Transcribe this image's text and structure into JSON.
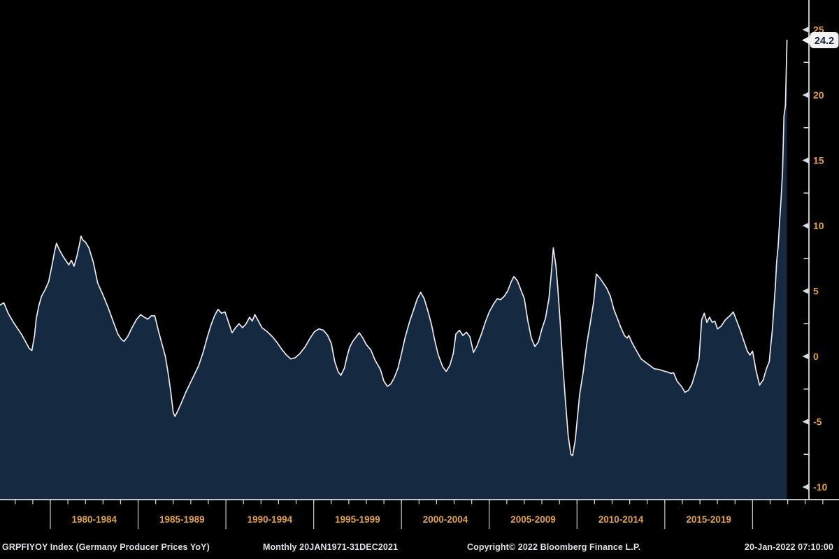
{
  "chart_data": {
    "type": "area",
    "title": "Germany Producer Prices YoY",
    "xlabel": "",
    "ylabel": "",
    "grid": false,
    "legend_position": "none",
    "y_axis": {
      "labeled_ticks": [
        25,
        20,
        15,
        10,
        5,
        0,
        -5,
        -10
      ],
      "minor_ticks": [
        22.5,
        17.5,
        12.5,
        7.5,
        2.5,
        -2.5,
        -7.5
      ],
      "range": [
        -10.6,
        25.6
      ],
      "side": "right"
    },
    "x_axis": {
      "bucket_labels": [
        {
          "label": "1980-1984",
          "start_year": 1980
        },
        {
          "label": "1985-1989",
          "start_year": 1985
        },
        {
          "label": "1990-1994",
          "start_year": 1990
        },
        {
          "label": "1995-1999",
          "start_year": 1995
        },
        {
          "label": "2000-2004",
          "start_year": 2000
        },
        {
          "label": "2005-2009",
          "start_year": 2005
        },
        {
          "label": "2010-2014",
          "start_year": 2010
        },
        {
          "label": "2015-2019",
          "start_year": 2015
        }
      ],
      "separator_years": [
        1980,
        1985,
        1990,
        1995,
        2000,
        2005,
        2010,
        2015,
        2020
      ],
      "year_tick_start": 1978,
      "year_tick_end": 2024,
      "visible_range": [
        1977.1,
        2022.0
      ]
    },
    "last_value": 24.2,
    "last_value_label": "24.2",
    "series": [
      {
        "name": "GRPFIYOY Index",
        "points": [
          [
            1977.1,
            3.9
          ],
          [
            1977.35,
            4.1
          ],
          [
            1977.6,
            3.3
          ],
          [
            1977.9,
            2.6
          ],
          [
            1978.1,
            2.2
          ],
          [
            1978.35,
            1.7
          ],
          [
            1978.6,
            1.1
          ],
          [
            1978.8,
            0.6
          ],
          [
            1978.95,
            0.45
          ],
          [
            1979.1,
            1.6
          ],
          [
            1979.2,
            2.9
          ],
          [
            1979.35,
            3.9
          ],
          [
            1979.5,
            4.6
          ],
          [
            1979.7,
            5.1
          ],
          [
            1979.9,
            5.7
          ],
          [
            1980.1,
            7.0
          ],
          [
            1980.25,
            8.1
          ],
          [
            1980.35,
            8.65
          ],
          [
            1980.5,
            8.2
          ],
          [
            1980.7,
            7.7
          ],
          [
            1980.9,
            7.3
          ],
          [
            1981.05,
            7.0
          ],
          [
            1981.2,
            7.35
          ],
          [
            1981.35,
            6.9
          ],
          [
            1981.5,
            7.6
          ],
          [
            1981.65,
            8.5
          ],
          [
            1981.75,
            9.2
          ],
          [
            1981.85,
            8.9
          ],
          [
            1982.0,
            8.75
          ],
          [
            1982.2,
            8.3
          ],
          [
            1982.45,
            7.2
          ],
          [
            1982.7,
            5.6
          ],
          [
            1983.0,
            4.7
          ],
          [
            1983.3,
            3.7
          ],
          [
            1983.6,
            2.6
          ],
          [
            1983.85,
            1.7
          ],
          [
            1984.05,
            1.3
          ],
          [
            1984.2,
            1.15
          ],
          [
            1984.4,
            1.5
          ],
          [
            1984.65,
            2.2
          ],
          [
            1984.9,
            2.8
          ],
          [
            1985.15,
            3.2
          ],
          [
            1985.35,
            3.0
          ],
          [
            1985.55,
            2.85
          ],
          [
            1985.75,
            3.1
          ],
          [
            1985.95,
            3.1
          ],
          [
            1986.15,
            2.0
          ],
          [
            1986.35,
            1.0
          ],
          [
            1986.55,
            0.0
          ],
          [
            1986.7,
            -1.2
          ],
          [
            1986.85,
            -2.6
          ],
          [
            1987.0,
            -4.3
          ],
          [
            1987.1,
            -4.6
          ],
          [
            1987.25,
            -4.2
          ],
          [
            1987.45,
            -3.6
          ],
          [
            1987.7,
            -2.8
          ],
          [
            1987.95,
            -2.1
          ],
          [
            1988.2,
            -1.4
          ],
          [
            1988.45,
            -0.7
          ],
          [
            1988.7,
            0.3
          ],
          [
            1988.95,
            1.5
          ],
          [
            1989.15,
            2.4
          ],
          [
            1989.35,
            3.1
          ],
          [
            1989.55,
            3.6
          ],
          [
            1989.75,
            3.3
          ],
          [
            1989.95,
            3.4
          ],
          [
            1990.15,
            2.6
          ],
          [
            1990.35,
            1.8
          ],
          [
            1990.55,
            2.2
          ],
          [
            1990.75,
            2.5
          ],
          [
            1990.95,
            2.2
          ],
          [
            1991.15,
            2.5
          ],
          [
            1991.35,
            3.0
          ],
          [
            1991.5,
            2.7
          ],
          [
            1991.65,
            3.2
          ],
          [
            1991.85,
            2.7
          ],
          [
            1992.05,
            2.2
          ],
          [
            1992.35,
            1.9
          ],
          [
            1992.65,
            1.5
          ],
          [
            1992.95,
            1.0
          ],
          [
            1993.2,
            0.5
          ],
          [
            1993.45,
            0.1
          ],
          [
            1993.7,
            -0.2
          ],
          [
            1993.95,
            -0.1
          ],
          [
            1994.2,
            0.2
          ],
          [
            1994.5,
            0.7
          ],
          [
            1994.8,
            1.4
          ],
          [
            1995.05,
            1.9
          ],
          [
            1995.3,
            2.1
          ],
          [
            1995.55,
            2.0
          ],
          [
            1995.8,
            1.6
          ],
          [
            1996.0,
            1.0
          ],
          [
            1996.2,
            -0.4
          ],
          [
            1996.4,
            -1.2
          ],
          [
            1996.55,
            -1.45
          ],
          [
            1996.75,
            -0.9
          ],
          [
            1996.9,
            0.0
          ],
          [
            1997.05,
            0.7
          ],
          [
            1997.25,
            1.2
          ],
          [
            1997.6,
            1.8
          ],
          [
            1997.8,
            1.4
          ],
          [
            1998.0,
            0.9
          ],
          [
            1998.25,
            0.5
          ],
          [
            1998.5,
            -0.3
          ],
          [
            1998.8,
            -1.0
          ],
          [
            1999.0,
            -1.9
          ],
          [
            1999.2,
            -2.3
          ],
          [
            1999.4,
            -2.1
          ],
          [
            1999.6,
            -1.6
          ],
          [
            1999.8,
            -0.9
          ],
          [
            2000.0,
            0.2
          ],
          [
            2000.2,
            1.4
          ],
          [
            2000.45,
            2.6
          ],
          [
            2000.7,
            3.6
          ],
          [
            2000.9,
            4.4
          ],
          [
            2001.1,
            4.9
          ],
          [
            2001.3,
            4.4
          ],
          [
            2001.5,
            3.5
          ],
          [
            2001.7,
            2.5
          ],
          [
            2001.9,
            1.2
          ],
          [
            2002.1,
            0.1
          ],
          [
            2002.35,
            -0.8
          ],
          [
            2002.55,
            -1.15
          ],
          [
            2002.75,
            -0.7
          ],
          [
            2002.95,
            0.2
          ],
          [
            2003.1,
            1.7
          ],
          [
            2003.3,
            2.0
          ],
          [
            2003.5,
            1.6
          ],
          [
            2003.7,
            1.85
          ],
          [
            2003.9,
            1.5
          ],
          [
            2004.1,
            0.3
          ],
          [
            2004.3,
            0.8
          ],
          [
            2004.55,
            1.7
          ],
          [
            2004.8,
            2.7
          ],
          [
            2005.0,
            3.4
          ],
          [
            2005.25,
            4.0
          ],
          [
            2005.45,
            4.4
          ],
          [
            2005.65,
            4.35
          ],
          [
            2005.85,
            4.6
          ],
          [
            2006.05,
            5.0
          ],
          [
            2006.25,
            5.7
          ],
          [
            2006.4,
            6.1
          ],
          [
            2006.6,
            5.8
          ],
          [
            2006.8,
            5.1
          ],
          [
            2007.0,
            4.4
          ],
          [
            2007.2,
            2.7
          ],
          [
            2007.4,
            1.4
          ],
          [
            2007.6,
            0.75
          ],
          [
            2007.8,
            1.1
          ],
          [
            2008.0,
            2.1
          ],
          [
            2008.2,
            2.9
          ],
          [
            2008.4,
            4.4
          ],
          [
            2008.55,
            6.6
          ],
          [
            2008.65,
            8.3
          ],
          [
            2008.8,
            6.9
          ],
          [
            2008.9,
            5.3
          ],
          [
            2009.05,
            2.5
          ],
          [
            2009.2,
            -0.8
          ],
          [
            2009.35,
            -3.6
          ],
          [
            2009.5,
            -6.1
          ],
          [
            2009.65,
            -7.5
          ],
          [
            2009.75,
            -7.6
          ],
          [
            2009.9,
            -6.4
          ],
          [
            2010.0,
            -5.0
          ],
          [
            2010.15,
            -2.9
          ],
          [
            2010.35,
            -1.2
          ],
          [
            2010.55,
            0.9
          ],
          [
            2010.75,
            2.5
          ],
          [
            2010.95,
            4.2
          ],
          [
            2011.1,
            6.3
          ],
          [
            2011.3,
            6.0
          ],
          [
            2011.5,
            5.6
          ],
          [
            2011.7,
            5.2
          ],
          [
            2011.9,
            4.6
          ],
          [
            2012.1,
            3.6
          ],
          [
            2012.3,
            2.9
          ],
          [
            2012.5,
            2.2
          ],
          [
            2012.7,
            1.6
          ],
          [
            2012.85,
            1.4
          ],
          [
            2012.95,
            1.6
          ],
          [
            2013.15,
            1.0
          ],
          [
            2013.4,
            0.4
          ],
          [
            2013.65,
            -0.2
          ],
          [
            2013.9,
            -0.45
          ],
          [
            2014.15,
            -0.7
          ],
          [
            2014.4,
            -0.95
          ],
          [
            2014.65,
            -1.0
          ],
          [
            2014.9,
            -1.1
          ],
          [
            2015.15,
            -1.2
          ],
          [
            2015.35,
            -1.3
          ],
          [
            2015.5,
            -1.25
          ],
          [
            2015.7,
            -1.9
          ],
          [
            2015.95,
            -2.3
          ],
          [
            2016.15,
            -2.75
          ],
          [
            2016.35,
            -2.6
          ],
          [
            2016.55,
            -2.1
          ],
          [
            2016.75,
            -1.2
          ],
          [
            2016.95,
            -0.2
          ],
          [
            2017.1,
            2.8
          ],
          [
            2017.25,
            3.3
          ],
          [
            2017.4,
            2.6
          ],
          [
            2017.55,
            3.0
          ],
          [
            2017.7,
            2.6
          ],
          [
            2017.85,
            2.7
          ],
          [
            2018.0,
            2.1
          ],
          [
            2018.2,
            2.3
          ],
          [
            2018.45,
            2.8
          ],
          [
            2018.7,
            3.1
          ],
          [
            2018.9,
            3.4
          ],
          [
            2019.1,
            2.7
          ],
          [
            2019.3,
            2.0
          ],
          [
            2019.5,
            1.2
          ],
          [
            2019.7,
            0.4
          ],
          [
            2019.85,
            0.1
          ],
          [
            2020.0,
            0.4
          ],
          [
            2020.2,
            -1.1
          ],
          [
            2020.4,
            -2.2
          ],
          [
            2020.6,
            -1.8
          ],
          [
            2020.8,
            -0.9
          ],
          [
            2020.95,
            -0.4
          ],
          [
            2021.04,
            0.9
          ],
          [
            2021.12,
            1.9
          ],
          [
            2021.21,
            3.7
          ],
          [
            2021.29,
            5.2
          ],
          [
            2021.37,
            7.2
          ],
          [
            2021.46,
            8.5
          ],
          [
            2021.54,
            10.4
          ],
          [
            2021.62,
            12.0
          ],
          [
            2021.71,
            14.2
          ],
          [
            2021.79,
            18.4
          ],
          [
            2021.87,
            19.2
          ],
          [
            2021.96,
            24.2
          ]
        ]
      }
    ]
  },
  "status_bar": {
    "ticker": "GRPFIYOY Index (Germany Producer Prices YoY)",
    "range": "Monthly 20JAN1971-31DEC2021",
    "copyright": "Copyright© 2022 Bloomberg Finance L.P.",
    "timestamp": "20-Jan-2022 07:10:00"
  },
  "colors": {
    "background": "#000000",
    "area_fill": "#152940",
    "line": "#e9ebee",
    "axis": "#d9dcde",
    "separator": "#c9ccce",
    "label_amber": "#e2a33e",
    "last_value_bg": "#f1f1ef",
    "last_value_text": "#12233f",
    "status_text": "#dfe3e6"
  }
}
